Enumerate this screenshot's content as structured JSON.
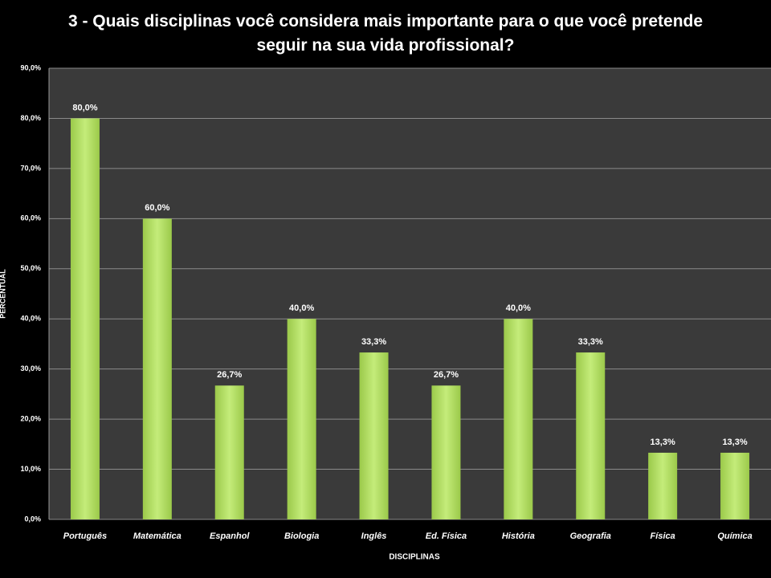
{
  "chart_data": {
    "type": "bar",
    "title": "3 - Quais disciplinas você considera mais importante para o que você pretende seguir na sua vida profissional?",
    "x_label": "DISCIPLINAS",
    "y_label": "PERCENTUAL",
    "categories": [
      "Português",
      "Matemática",
      "Espanhol",
      "Biologia",
      "Inglês",
      "Ed. Física",
      "História",
      "Geografia",
      "Física",
      "Química"
    ],
    "values": [
      80,
      60,
      26.7,
      40,
      33.3,
      26.7,
      40,
      33.3,
      13.3,
      13.3
    ],
    "value_labels": [
      "80,0%",
      "60,0%",
      "26,7%",
      "40,0%",
      "33,3%",
      "26,7%",
      "40,0%",
      "33,3%",
      "13,3%",
      "13,3%"
    ],
    "color": "#9bc94a",
    "ylim": [
      0,
      90
    ],
    "yticks": [
      {
        "value": 0,
        "label": "0,0%"
      },
      {
        "value": 10,
        "label": "10,0%"
      },
      {
        "value": 20,
        "label": "20,0%"
      },
      {
        "value": 30,
        "label": "30,0%"
      },
      {
        "value": 40,
        "label": "40,0%"
      },
      {
        "value": 50,
        "label": "50,0%"
      },
      {
        "value": 60,
        "label": "60,0%"
      },
      {
        "value": 70,
        "label": "70,0%"
      },
      {
        "value": 80,
        "label": "80,0%"
      },
      {
        "value": 90,
        "label": "90,0%"
      }
    ],
    "grid": true
  }
}
